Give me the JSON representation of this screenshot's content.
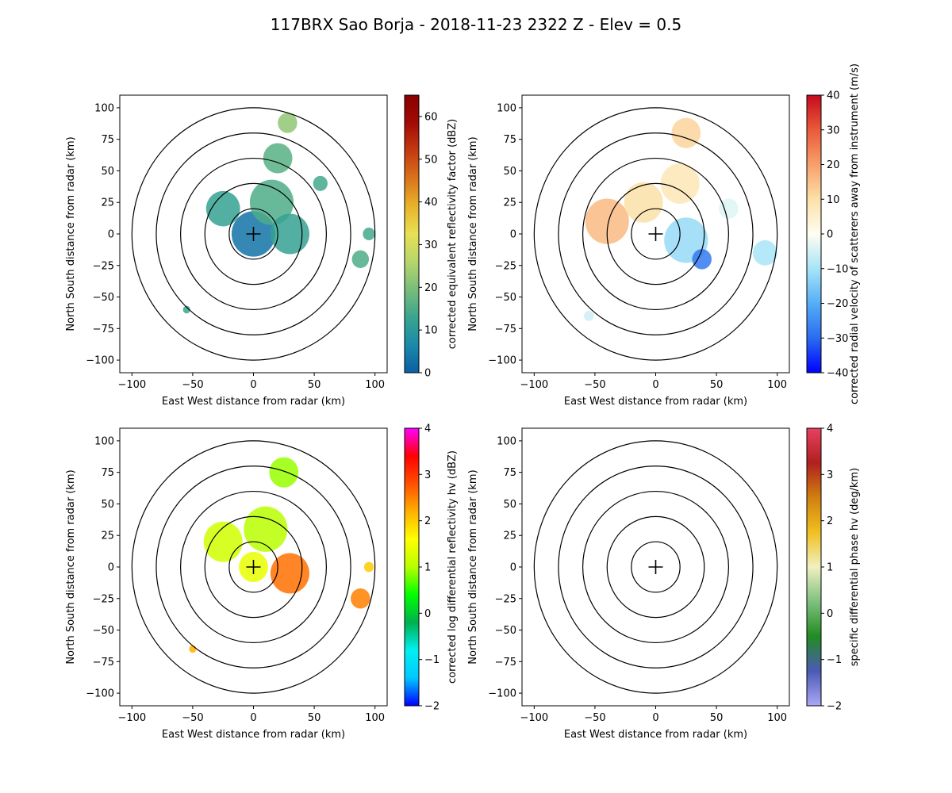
{
  "title": "117BRX Sao Borja - 2018-11-23 2322 Z -  Elev = 0.5",
  "chart_data": [
    {
      "type": "heatmap",
      "id": "reflectivity",
      "xlabel": "East West distance from radar (km)",
      "ylabel": "North South distance from radar (km)",
      "xlim": [
        -110,
        110
      ],
      "ylim": [
        -110,
        110
      ],
      "xticks": [
        -100,
        -50,
        0,
        50,
        100
      ],
      "yticks": [
        -100,
        -75,
        -50,
        -25,
        0,
        25,
        50,
        75,
        100
      ],
      "range_rings_km": [
        20,
        40,
        60,
        80,
        100
      ],
      "colorbar": {
        "label": "corrected equivalent reflectivity factor (dBZ)",
        "vmin": 0,
        "vmax": 65,
        "ticks": [
          0,
          10,
          20,
          30,
          40,
          50,
          60
        ],
        "colors": [
          "#0a5fa6",
          "#1b8aa8",
          "#3aa58e",
          "#78bd7a",
          "#b7d66a",
          "#e8e055",
          "#e8b32b",
          "#d9741b",
          "#c43a12",
          "#a30b05",
          "#8a0000"
        ]
      },
      "echo_regions": [
        {
          "x": 0,
          "y": 0,
          "r": 18,
          "value": 3
        },
        {
          "x": -25,
          "y": 20,
          "r": 14,
          "value": 12
        },
        {
          "x": 15,
          "y": 25,
          "r": 18,
          "value": 15
        },
        {
          "x": 30,
          "y": 0,
          "r": 16,
          "value": 12
        },
        {
          "x": 20,
          "y": 60,
          "r": 12,
          "value": 16
        },
        {
          "x": 28,
          "y": 88,
          "r": 8,
          "value": 22
        },
        {
          "x": 55,
          "y": 40,
          "r": 6,
          "value": 14
        },
        {
          "x": 88,
          "y": -20,
          "r": 7,
          "value": 15
        },
        {
          "x": 95,
          "y": 0,
          "r": 5,
          "value": 14
        },
        {
          "x": -55,
          "y": -60,
          "r": 3,
          "value": 13
        }
      ]
    },
    {
      "type": "heatmap",
      "id": "velocity",
      "xlabel": "East West distance from radar (km)",
      "ylabel": "North South distance from radar (km)",
      "xlim": [
        -110,
        110
      ],
      "ylim": [
        -110,
        110
      ],
      "xticks": [
        -100,
        -50,
        0,
        50,
        100
      ],
      "yticks": [
        -100,
        -75,
        -50,
        -25,
        0,
        25,
        50,
        75,
        100
      ],
      "range_rings_km": [
        20,
        40,
        60,
        80,
        100
      ],
      "colorbar": {
        "label": "corrected radial velocity of scatterers away from instrument (m/s)",
        "vmin": -40,
        "vmax": 40,
        "ticks": [
          -40,
          -30,
          -20,
          -10,
          0,
          10,
          20,
          30,
          40
        ],
        "colors": [
          "#0000ff",
          "#2a6cf0",
          "#55aef5",
          "#a8e4f8",
          "#fffef0",
          "#fce0a8",
          "#f7a06a",
          "#e95a3a",
          "#c70a1e"
        ]
      },
      "echo_regions": [
        {
          "x": -40,
          "y": 10,
          "r": 18,
          "value": 16
        },
        {
          "x": -10,
          "y": 25,
          "r": 16,
          "value": 10
        },
        {
          "x": 20,
          "y": 40,
          "r": 16,
          "value": 8
        },
        {
          "x": 25,
          "y": 80,
          "r": 12,
          "value": 12
        },
        {
          "x": 25,
          "y": -5,
          "r": 18,
          "value": -12
        },
        {
          "x": 38,
          "y": -20,
          "r": 8,
          "value": -28
        },
        {
          "x": 60,
          "y": 20,
          "r": 8,
          "value": -4
        },
        {
          "x": 90,
          "y": -15,
          "r": 10,
          "value": -10
        },
        {
          "x": -55,
          "y": -65,
          "r": 4,
          "value": -6
        }
      ]
    },
    {
      "type": "heatmap",
      "id": "zdr",
      "xlabel": "East West distance from radar (km)",
      "ylabel": "North South distance from radar (km)",
      "xlim": [
        -110,
        110
      ],
      "ylim": [
        -110,
        110
      ],
      "xticks": [
        -100,
        -50,
        0,
        50,
        100
      ],
      "yticks": [
        -100,
        -75,
        -50,
        -25,
        0,
        25,
        50,
        75,
        100
      ],
      "range_rings_km": [
        20,
        40,
        60,
        80,
        100
      ],
      "colorbar": {
        "label": "corrected log differential reflectivity hv (dBZ)",
        "vmin": -2,
        "vmax": 4,
        "ticks": [
          -2,
          -1,
          0,
          1,
          2,
          3,
          4
        ],
        "colors": [
          "#0000ff",
          "#00c8ff",
          "#00f0f0",
          "#00b050",
          "#00ff00",
          "#b8ff00",
          "#ffff00",
          "#ffb000",
          "#ff5000",
          "#ff0000",
          "#ff00ff"
        ]
      },
      "echo_regions": [
        {
          "x": -25,
          "y": 20,
          "r": 16,
          "value": 1.2
        },
        {
          "x": 10,
          "y": 30,
          "r": 18,
          "value": 1.0
        },
        {
          "x": 30,
          "y": -5,
          "r": 16,
          "value": 2.6
        },
        {
          "x": 25,
          "y": 75,
          "r": 12,
          "value": 0.9
        },
        {
          "x": 0,
          "y": 0,
          "r": 12,
          "value": 1.4
        },
        {
          "x": 88,
          "y": -25,
          "r": 8,
          "value": 2.5
        },
        {
          "x": 95,
          "y": 0,
          "r": 4,
          "value": 2.0
        },
        {
          "x": -50,
          "y": -65,
          "r": 3,
          "value": 2.2
        }
      ]
    },
    {
      "type": "heatmap",
      "id": "kdp",
      "xlabel": "East West distance from radar (km)",
      "ylabel": "North South distance from radar (km)",
      "xlim": [
        -110,
        110
      ],
      "ylim": [
        -110,
        110
      ],
      "xticks": [
        -100,
        -50,
        0,
        50,
        100
      ],
      "yticks": [
        -100,
        -75,
        -50,
        -25,
        0,
        25,
        50,
        75,
        100
      ],
      "range_rings_km": [
        20,
        40,
        60,
        80,
        100
      ],
      "colorbar": {
        "label": "specific differential phase hv (deg/km)",
        "vmin": -2,
        "vmax": 4,
        "ticks": [
          -2,
          -1,
          0,
          1,
          2,
          3,
          4
        ],
        "colors": [
          "#a9a9f5",
          "#4b5ab5",
          "#228b22",
          "#7fc07f",
          "#f0f0c0",
          "#f0c020",
          "#d08010",
          "#b02020",
          "#e84060"
        ]
      },
      "echo_regions": []
    }
  ]
}
